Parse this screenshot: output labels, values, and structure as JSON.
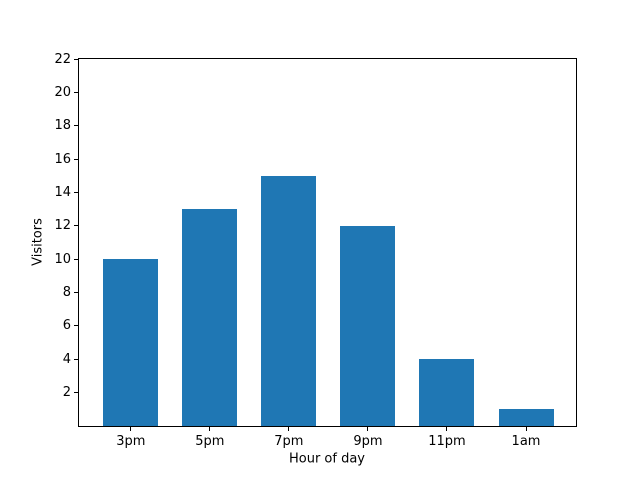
{
  "chart_data": {
    "type": "bar",
    "xlabel": "Hour of day",
    "ylabel": "Visitors",
    "categories": [
      "3pm",
      "5pm",
      "7pm",
      "9pm",
      "11pm",
      "1am"
    ],
    "values": [
      10,
      13,
      15,
      12,
      4,
      1
    ],
    "yticks": [
      2,
      4,
      6,
      8,
      10,
      12,
      14,
      16,
      18,
      20,
      22
    ],
    "ylim": [
      0,
      22
    ],
    "bar_color": "#1f77b4",
    "axis_color": "#000000",
    "background_color": "#ffffff",
    "grid": false,
    "legend": "none"
  }
}
